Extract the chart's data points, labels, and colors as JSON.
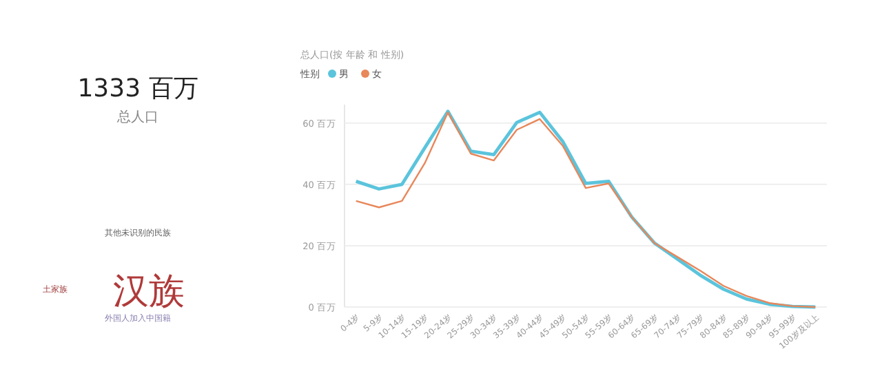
{
  "chart_data": [
    {
      "type": "other",
      "title": "1333 百万",
      "subtitle": "总人口"
    },
    {
      "type": "other",
      "annotations": [
        "汉族",
        "其他未识别的民族",
        "外国人加入中国籍",
        "土家族"
      ]
    },
    {
      "type": "line",
      "title": "总人口(按 年龄 和 性别)",
      "legend_title": "性别",
      "legend": "top left",
      "grid": "y",
      "marker": "none",
      "line_style": "solid",
      "categories": [
        "0-4岁",
        "5-9岁",
        "10-14岁",
        "15-19岁",
        "20-24岁",
        "25-29岁",
        "30-34岁",
        "35-39岁",
        "40-44岁",
        "45-49岁",
        "50-54岁",
        "55-59岁",
        "60-64岁",
        "65-69岁",
        "70-74岁",
        "75-79岁",
        "80-84岁",
        "85-89岁",
        "90-94岁",
        "95-99岁",
        "100岁及以上"
      ],
      "ylim": [
        0,
        66
      ],
      "yticks": [
        {
          "value": 0,
          "label": "0 百万"
        },
        {
          "value": 20,
          "label": "20 百万"
        },
        {
          "value": 40,
          "label": "40 百万"
        },
        {
          "value": 60,
          "label": "60 百万"
        }
      ],
      "series": [
        {
          "name": "男",
          "color": "#5bc4dc",
          "values": [
            41,
            38.5,
            40,
            52,
            63.8,
            50.8,
            49.7,
            60.2,
            63.5,
            54,
            40.3,
            41,
            29.4,
            20.8,
            15.6,
            10.3,
            5.8,
            2.6,
            0.9,
            0.2,
            0
          ]
        },
        {
          "name": "女",
          "color": "#e8875a",
          "values": [
            34.6,
            32.5,
            34.6,
            47,
            63.5,
            50,
            47.8,
            57.8,
            61.3,
            52.6,
            38.8,
            40.3,
            29.4,
            20.8,
            16.3,
            11.8,
            6.9,
            3.6,
            1.3,
            0.3,
            0
          ]
        }
      ]
    }
  ]
}
